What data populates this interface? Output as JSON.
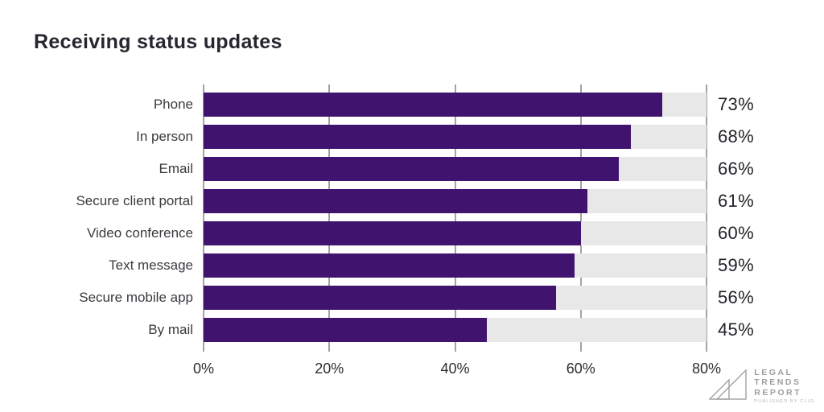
{
  "title": "Receiving status updates",
  "chart_data": {
    "type": "bar",
    "orientation": "horizontal",
    "title": "Receiving status updates",
    "categories": [
      "Phone",
      "In person",
      "Email",
      "Secure client portal",
      "Video conference",
      "Text message",
      "Secure mobile app",
      "By mail"
    ],
    "values": [
      73,
      68,
      66,
      61,
      60,
      59,
      56,
      45
    ],
    "value_labels": [
      "73%",
      "68%",
      "66%",
      "61%",
      "60%",
      "59%",
      "56%",
      "45%"
    ],
    "xlim": [
      0,
      80
    ],
    "x_tick_values": [
      0,
      20,
      40,
      60,
      80
    ],
    "x_tick_labels": [
      "0%",
      "20%",
      "40%",
      "60%",
      "80%"
    ],
    "grid": true,
    "legend": "none",
    "colors": {
      "bar": "#40146e",
      "track": "#e8e8e8",
      "gridline": "#a3a3a3"
    }
  },
  "logo": {
    "line1": "LEGAL",
    "line2": "TRENDS",
    "line3": "REPORT",
    "tagline": "PUBLISHED BY CLIO"
  }
}
